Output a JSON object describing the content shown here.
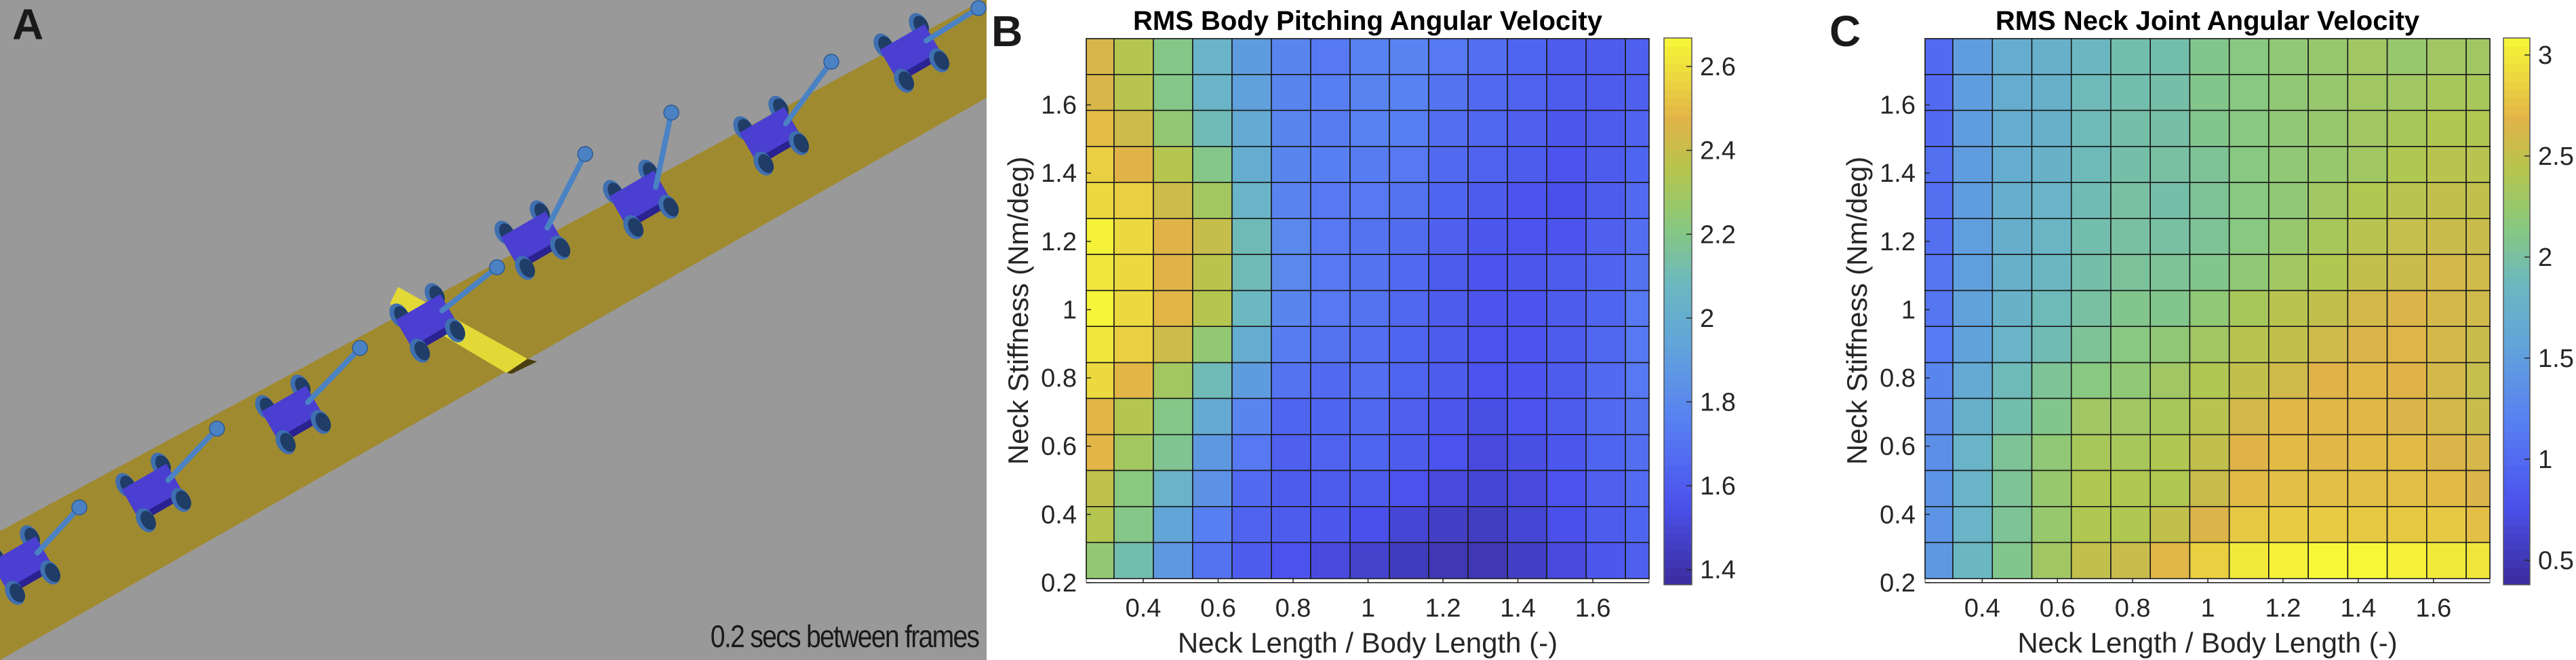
{
  "panel_a": {
    "label": "A",
    "caption": "0.2 secs between frames",
    "colors": {
      "background": "#999999",
      "track": "#a08a30",
      "bump": "#e2d936",
      "body": "#4a3fd0",
      "wheel": "#3f6fb0",
      "neck": "#4a82c4"
    }
  },
  "chart_data": [
    {
      "panel": "B",
      "type": "heatmap",
      "title": "RMS Body Pitching Angular Velocity",
      "xlabel": "Neck Length / Body Length (-)",
      "ylabel": "Neck Stiffness (Nm/deg)",
      "xlim": [
        0.248,
        1.75
      ],
      "ylim": [
        0.2,
        1.794
      ],
      "x_ticks": [
        "0.4",
        "0.6",
        "0.8",
        "1",
        "1.2",
        "1.4",
        "1.6"
      ],
      "y_ticks": [
        "0.2",
        "0.4",
        "0.6",
        "0.8",
        "1",
        "1.2",
        "1.4",
        "1.6"
      ],
      "colormap": "parula",
      "clim": [
        1.364,
        2.668
      ],
      "colorbar_ticks": [
        "1.4",
        "1.6",
        "1.8",
        "2",
        "2.2",
        "2.4",
        "2.6"
      ],
      "x_edges": [
        0.248,
        0.322,
        0.427,
        0.532,
        0.637,
        0.742,
        0.847,
        0.952,
        1.057,
        1.162,
        1.267,
        1.372,
        1.477,
        1.582,
        1.687,
        1.75
      ],
      "y_edges": [
        0.212,
        0.318,
        0.423,
        0.529,
        0.634,
        0.74,
        0.845,
        0.951,
        1.056,
        1.162,
        1.267,
        1.373,
        1.478,
        1.584,
        1.689,
        1.794
      ],
      "z": [
        [
          2.25,
          2.12,
          1.88,
          1.7,
          1.6,
          1.56,
          1.52,
          1.48,
          1.44,
          1.42,
          1.42,
          1.46,
          1.52,
          1.58,
          1.62
        ],
        [
          2.35,
          2.2,
          1.95,
          1.75,
          1.63,
          1.6,
          1.58,
          1.55,
          1.5,
          1.46,
          1.45,
          1.5,
          1.55,
          1.6,
          1.64
        ],
        [
          2.38,
          2.22,
          2.05,
          1.85,
          1.66,
          1.6,
          1.6,
          1.6,
          1.56,
          1.52,
          1.5,
          1.52,
          1.56,
          1.62,
          1.66
        ],
        [
          2.48,
          2.3,
          2.18,
          1.88,
          1.72,
          1.62,
          1.63,
          1.64,
          1.6,
          1.56,
          1.52,
          1.54,
          1.58,
          1.64,
          1.68
        ],
        [
          2.48,
          2.35,
          2.2,
          1.98,
          1.78,
          1.64,
          1.64,
          1.65,
          1.62,
          1.58,
          1.54,
          1.56,
          1.6,
          1.66,
          1.7
        ],
        [
          2.58,
          2.48,
          2.3,
          2.1,
          1.9,
          1.7,
          1.66,
          1.68,
          1.64,
          1.6,
          1.56,
          1.57,
          1.6,
          1.66,
          1.72
        ],
        [
          2.62,
          2.55,
          2.42,
          2.25,
          2.0,
          1.74,
          1.7,
          1.68,
          1.64,
          1.6,
          1.56,
          1.57,
          1.6,
          1.65,
          1.72
        ],
        [
          2.66,
          2.58,
          2.48,
          2.35,
          2.08,
          1.78,
          1.72,
          1.7,
          1.65,
          1.6,
          1.57,
          1.57,
          1.6,
          1.64,
          1.72
        ],
        [
          2.62,
          2.58,
          2.47,
          2.37,
          2.1,
          1.8,
          1.72,
          1.7,
          1.66,
          1.6,
          1.57,
          1.58,
          1.6,
          1.63,
          1.7
        ],
        [
          2.65,
          2.58,
          2.47,
          2.4,
          2.1,
          1.8,
          1.72,
          1.7,
          1.67,
          1.62,
          1.58,
          1.56,
          1.57,
          1.62,
          1.68
        ],
        [
          2.58,
          2.55,
          2.42,
          2.3,
          2.05,
          1.77,
          1.72,
          1.72,
          1.7,
          1.64,
          1.6,
          1.57,
          1.55,
          1.6,
          1.66
        ],
        [
          2.55,
          2.47,
          2.35,
          2.2,
          2.0,
          1.78,
          1.75,
          1.74,
          1.72,
          1.66,
          1.63,
          1.6,
          1.57,
          1.6,
          1.64
        ],
        [
          2.5,
          2.42,
          2.25,
          2.1,
          1.98,
          1.78,
          1.74,
          1.76,
          1.75,
          1.68,
          1.65,
          1.62,
          1.58,
          1.6,
          1.63
        ],
        [
          2.45,
          2.36,
          2.2,
          2.05,
          1.92,
          1.78,
          1.75,
          1.77,
          1.76,
          1.7,
          1.66,
          1.63,
          1.6,
          1.6,
          1.62
        ],
        [
          2.45,
          2.35,
          2.2,
          2.05,
          1.9,
          1.78,
          1.72,
          1.76,
          1.77,
          1.72,
          1.68,
          1.64,
          1.6,
          1.6,
          1.62
        ]
      ]
    },
    {
      "panel": "C",
      "type": "heatmap",
      "title": "RMS Neck Joint Angular Velocity",
      "xlabel": "Neck Length / Body Length (-)",
      "ylabel": "Neck Stiffness (Nm/deg)",
      "xlim": [
        0.248,
        1.75
      ],
      "ylim": [
        0.2,
        1.794
      ],
      "x_ticks": [
        "0.4",
        "0.6",
        "0.8",
        "1",
        "1.2",
        "1.4",
        "1.6"
      ],
      "y_ticks": [
        "0.2",
        "0.4",
        "0.6",
        "0.8",
        "1",
        "1.2",
        "1.4",
        "1.6"
      ],
      "colormap": "parula",
      "clim": [
        0.379,
        3.084
      ],
      "colorbar_ticks": [
        "0.5",
        "1",
        "1.5",
        "2",
        "2.5",
        "3"
      ],
      "x_edges": [
        0.248,
        0.322,
        0.427,
        0.532,
        0.637,
        0.742,
        0.847,
        0.952,
        1.057,
        1.162,
        1.267,
        1.372,
        1.477,
        1.582,
        1.687,
        1.75
      ],
      "y_edges": [
        0.212,
        0.318,
        0.423,
        0.529,
        0.634,
        0.74,
        0.845,
        0.951,
        1.056,
        1.162,
        1.267,
        1.373,
        1.478,
        1.584,
        1.689,
        1.794
      ],
      "z": [
        [
          1.45,
          1.85,
          2.1,
          2.3,
          2.5,
          2.55,
          2.7,
          2.85,
          3.0,
          3.05,
          3.08,
          3.08,
          3.05,
          3.0,
          2.98
        ],
        [
          1.4,
          1.8,
          2.05,
          2.25,
          2.4,
          2.4,
          2.5,
          2.65,
          2.8,
          2.82,
          2.82,
          2.8,
          2.8,
          2.8,
          2.75
        ],
        [
          1.4,
          1.8,
          2.05,
          2.25,
          2.4,
          2.4,
          2.4,
          2.55,
          2.72,
          2.75,
          2.75,
          2.75,
          2.75,
          2.72,
          2.65
        ],
        [
          1.35,
          1.8,
          2.05,
          2.2,
          2.35,
          2.35,
          2.4,
          2.5,
          2.68,
          2.72,
          2.7,
          2.72,
          2.72,
          2.65,
          2.62
        ],
        [
          1.3,
          1.75,
          1.95,
          2.1,
          2.3,
          2.3,
          2.35,
          2.45,
          2.6,
          2.7,
          2.7,
          2.7,
          2.65,
          2.6,
          2.55
        ],
        [
          1.25,
          1.65,
          1.9,
          2.05,
          2.15,
          2.2,
          2.3,
          2.4,
          2.5,
          2.58,
          2.68,
          2.7,
          2.68,
          2.6,
          2.52
        ],
        [
          1.15,
          1.55,
          1.8,
          1.92,
          2.05,
          2.15,
          2.2,
          2.3,
          2.45,
          2.5,
          2.58,
          2.65,
          2.67,
          2.6,
          2.55
        ],
        [
          1.1,
          1.55,
          1.78,
          1.9,
          2.0,
          2.1,
          2.1,
          2.2,
          2.35,
          2.45,
          2.5,
          2.6,
          2.65,
          2.6,
          2.58
        ],
        [
          1.1,
          1.52,
          1.75,
          1.85,
          1.97,
          2.03,
          2.05,
          2.1,
          2.2,
          2.3,
          2.4,
          2.5,
          2.55,
          2.6,
          2.58
        ],
        [
          1.05,
          1.52,
          1.73,
          1.82,
          1.95,
          2.0,
          2.0,
          2.05,
          2.15,
          2.25,
          2.35,
          2.45,
          2.52,
          2.55,
          2.55
        ],
        [
          1.05,
          1.5,
          1.72,
          1.8,
          1.92,
          2.0,
          1.97,
          2.05,
          2.15,
          2.2,
          2.3,
          2.4,
          2.45,
          2.5,
          2.5
        ],
        [
          1.05,
          1.5,
          1.7,
          1.78,
          1.9,
          1.97,
          2.0,
          2.05,
          2.15,
          2.2,
          2.25,
          2.3,
          2.4,
          2.45,
          2.45
        ],
        [
          1.0,
          1.5,
          1.7,
          1.75,
          1.9,
          1.97,
          1.98,
          2.1,
          2.15,
          2.2,
          2.25,
          2.3,
          2.35,
          2.4,
          2.4
        ],
        [
          1.0,
          1.5,
          1.7,
          1.75,
          1.9,
          1.95,
          1.97,
          2.1,
          2.15,
          2.2,
          2.25,
          2.3,
          2.3,
          2.35,
          2.35
        ],
        [
          1.0,
          1.5,
          1.7,
          1.75,
          1.85,
          1.95,
          1.95,
          2.1,
          2.15,
          2.2,
          2.25,
          2.3,
          2.25,
          2.3,
          2.3
        ]
      ]
    }
  ]
}
